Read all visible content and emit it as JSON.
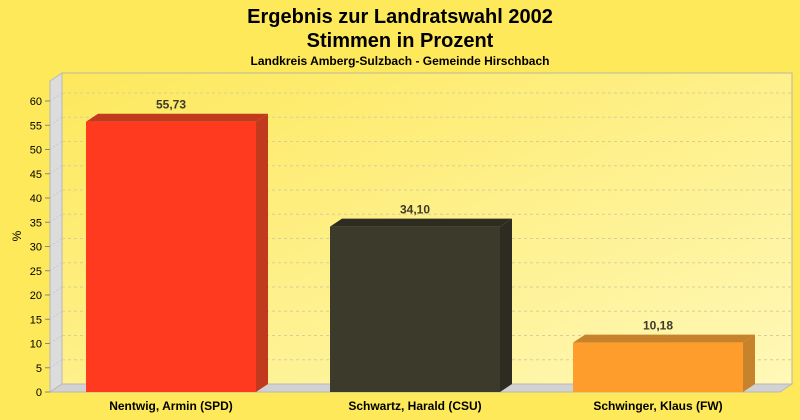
{
  "chart_data": {
    "type": "bar",
    "title": "Ergebnis zur Landratswahl 2002",
    "subtitle_line": "Stimmen in Prozent",
    "subtitle": "Landkreis Amberg-Sulzbach - Gemeinde Hirschbach",
    "ylabel": "%",
    "xlabel": "",
    "ylim": [
      0,
      60
    ],
    "yticks": [
      0,
      5,
      10,
      15,
      20,
      25,
      30,
      35,
      40,
      45,
      50,
      55,
      60
    ],
    "grid": true,
    "categories": [
      "Nentwig, Armin (SPD)",
      "Schwartz, Harald (CSU)",
      "Schwinger, Klaus (FW)"
    ],
    "values": [
      55.73,
      34.1,
      10.18
    ],
    "value_labels": [
      "55,73",
      "34,10",
      "10,18"
    ],
    "colors": [
      "#ff3a1e",
      "#3c3a2a",
      "#ff9d2c"
    ],
    "side_colors": [
      "#c23a1e",
      "#2e2c20",
      "#c7822c"
    ]
  }
}
